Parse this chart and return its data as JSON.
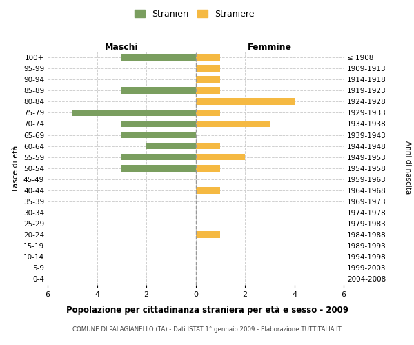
{
  "age_groups": [
    "0-4",
    "5-9",
    "10-14",
    "15-19",
    "20-24",
    "25-29",
    "30-34",
    "35-39",
    "40-44",
    "45-49",
    "50-54",
    "55-59",
    "60-64",
    "65-69",
    "70-74",
    "75-79",
    "80-84",
    "85-89",
    "90-94",
    "95-99",
    "100+"
  ],
  "birth_years": [
    "2004-2008",
    "1999-2003",
    "1994-1998",
    "1989-1993",
    "1984-1988",
    "1979-1983",
    "1974-1978",
    "1969-1973",
    "1964-1968",
    "1959-1963",
    "1954-1958",
    "1949-1953",
    "1944-1948",
    "1939-1943",
    "1934-1938",
    "1929-1933",
    "1924-1928",
    "1919-1923",
    "1914-1918",
    "1909-1913",
    "≤ 1908"
  ],
  "maschi": [
    3,
    0,
    0,
    3,
    0,
    5,
    3,
    3,
    2,
    3,
    3,
    0,
    0,
    0,
    0,
    0,
    0,
    0,
    0,
    0,
    0
  ],
  "femmine": [
    1,
    1,
    1,
    1,
    4,
    1,
    3,
    0,
    1,
    2,
    1,
    0,
    1,
    0,
    0,
    0,
    1,
    0,
    0,
    0,
    0
  ],
  "maschi_color": "#7a9e5f",
  "femmine_color": "#f5b942",
  "title": "Popolazione per cittadinanza straniera per età e sesso - 2009",
  "subtitle": "COMUNE DI PALAGIANELLO (TA) - Dati ISTAT 1° gennaio 2009 - Elaborazione TUTTITALIA.IT",
  "ylabel_left": "Fasce di età",
  "ylabel_right": "Anni di nascita",
  "xlabel_maschi": "Maschi",
  "xlabel_femmine": "Femmine",
  "legend_maschi": "Stranieri",
  "legend_femmine": "Straniere",
  "xlim": 6,
  "background_color": "#ffffff",
  "grid_color": "#d0d0d0"
}
